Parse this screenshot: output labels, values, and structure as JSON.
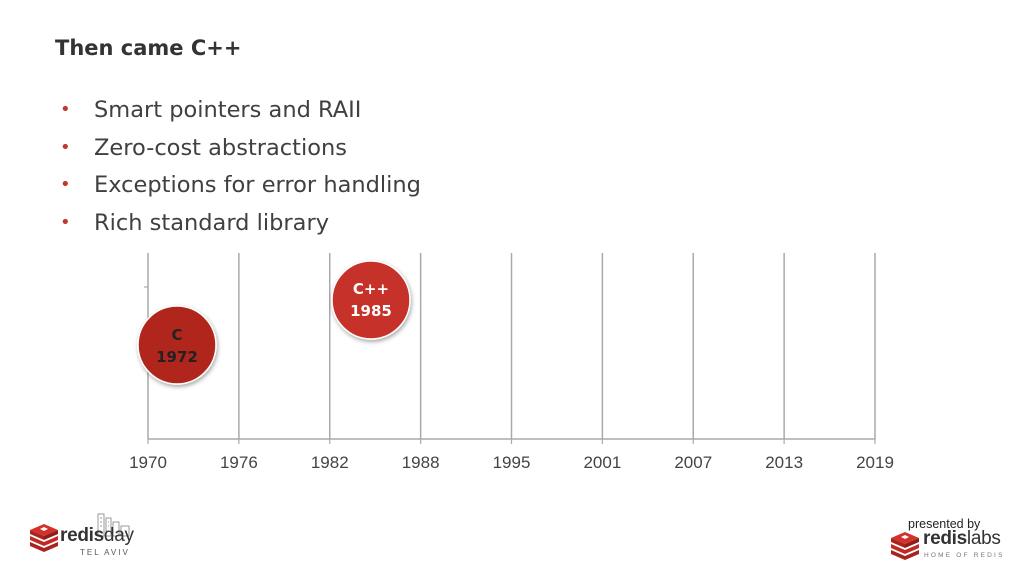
{
  "slide": {
    "title": "Then came C++",
    "bullets": [
      "Smart pointers and RAII",
      "Zero-cost abstractions",
      "Exceptions for error handling",
      "Rich standard library"
    ]
  },
  "timeline": {
    "tick_labels": [
      "1970",
      "1976",
      "1982",
      "1988",
      "1995",
      "2001",
      "2007",
      "2013",
      "2019"
    ],
    "badges": [
      {
        "name": "C",
        "year": "1972",
        "color": "#b0281e",
        "text_color": "#222222"
      },
      {
        "name": "C++",
        "year": "1985",
        "color": "#c6302a",
        "text_color": "#ffffff"
      }
    ],
    "grid_color": "#aaaaaa",
    "accent_color": "#c0392b"
  },
  "footer": {
    "left_logo": {
      "word_bold": "redis",
      "word_light": "day",
      "sub": "TEL AVIV",
      "icon": "redis-cube-icon"
    },
    "right_logo": {
      "presented_by": "presented by",
      "word_bold": "redis",
      "word_light": "labs",
      "sub": "HOME OF REDIS",
      "icon": "redis-cube-icon"
    }
  }
}
